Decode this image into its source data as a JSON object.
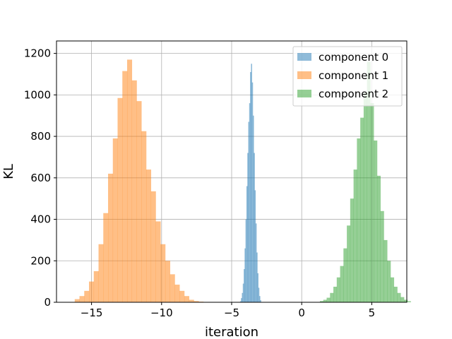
{
  "chart_data": {
    "type": "histogram",
    "xlabel": "iteration",
    "ylabel": "KL",
    "xlim": [
      -17.5,
      7.5
    ],
    "ylim": [
      0,
      1260
    ],
    "xticks": [
      -15,
      -10,
      -5,
      0,
      5
    ],
    "yticks": [
      0,
      200,
      400,
      600,
      800,
      1000,
      1200
    ],
    "grid": true,
    "legend_position": "top-right",
    "series": [
      {
        "name": "component 0",
        "color": "#1f77b4",
        "bin_start": -4.4,
        "bin_width": 0.065,
        "counts": [
          5,
          20,
          45,
          90,
          160,
          260,
          400,
          560,
          720,
          870,
          960,
          1110,
          1150,
          1060,
          900,
          720,
          540,
          380,
          240,
          140,
          70,
          30,
          10
        ]
      },
      {
        "name": "component 1",
        "color": "#ff7f0e",
        "bin_start": -16.2,
        "bin_width": 0.34,
        "counts": [
          15,
          30,
          55,
          100,
          150,
          280,
          430,
          620,
          790,
          985,
          1115,
          1170,
          1070,
          970,
          825,
          640,
          535,
          390,
          280,
          200,
          135,
          85,
          55,
          30,
          12,
          6,
          3,
          1
        ]
      },
      {
        "name": "component 2",
        "color": "#2ca02c",
        "bin_start": 1.3,
        "bin_width": 0.24,
        "counts": [
          6,
          12,
          22,
          45,
          75,
          120,
          175,
          260,
          370,
          500,
          640,
          790,
          890,
          1010,
          1160,
          960,
          780,
          610,
          440,
          300,
          200,
          120,
          75,
          45,
          25,
          12,
          5
        ]
      }
    ]
  }
}
